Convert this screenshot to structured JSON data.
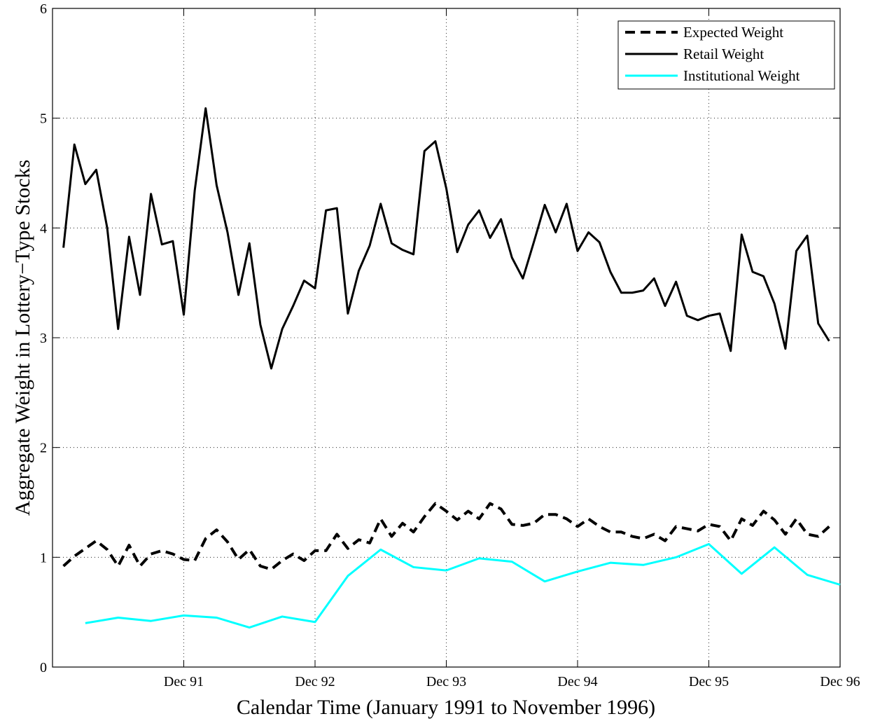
{
  "chart_data": {
    "type": "line",
    "x_label": "Calendar Time (January 1991 to November 1996)",
    "y_label": "Aggregate Weight in Lottery−Type Stocks",
    "xlim": [
      0,
      72
    ],
    "xticks": [
      {
        "value": 12,
        "label": "Dec 91"
      },
      {
        "value": 24,
        "label": "Dec 92"
      },
      {
        "value": 36,
        "label": "Dec 93"
      },
      {
        "value": 48,
        "label": "Dec 94"
      },
      {
        "value": 60,
        "label": "Dec 95"
      },
      {
        "value": 72,
        "label": "Dec 96"
      }
    ],
    "ylim": [
      0,
      6
    ],
    "yticks": [
      0,
      1,
      2,
      3,
      4,
      5,
      6
    ],
    "grid": true,
    "legend": "upper right",
    "series": [
      {
        "name": "Expected Weight",
        "color": "#000000",
        "linestyle": "dashed",
        "x": [
          1,
          2,
          3,
          4,
          5,
          6,
          7,
          8,
          9,
          10,
          11,
          12,
          13,
          14,
          15,
          16,
          17,
          18,
          19,
          20,
          21,
          22,
          23,
          24,
          25,
          26,
          27,
          28,
          29,
          30,
          31,
          32,
          33,
          34,
          35,
          36,
          37,
          38,
          39,
          40,
          41,
          42,
          43,
          44,
          45,
          46,
          47,
          48,
          49,
          50,
          51,
          52,
          53,
          54,
          55,
          56,
          57,
          58,
          59,
          60,
          61,
          62,
          63,
          64,
          65,
          66,
          67,
          68,
          69,
          70,
          71
        ],
        "values": [
          0.92,
          1.01,
          1.08,
          1.15,
          1.07,
          0.92,
          1.11,
          0.92,
          1.03,
          1.06,
          1.03,
          0.98,
          0.97,
          1.17,
          1.25,
          1.14,
          0.98,
          1.07,
          0.92,
          0.89,
          0.97,
          1.03,
          0.97,
          1.06,
          1.06,
          1.21,
          1.08,
          1.16,
          1.13,
          1.35,
          1.19,
          1.31,
          1.23,
          1.37,
          1.49,
          1.42,
          1.34,
          1.42,
          1.35,
          1.49,
          1.44,
          1.3,
          1.29,
          1.31,
          1.39,
          1.39,
          1.35,
          1.28,
          1.35,
          1.28,
          1.23,
          1.23,
          1.19,
          1.17,
          1.21,
          1.15,
          1.28,
          1.26,
          1.24,
          1.3,
          1.28,
          1.15,
          1.35,
          1.29,
          1.42,
          1.34,
          1.21,
          1.35,
          1.21,
          1.19,
          1.28
        ]
      },
      {
        "name": "Retail Weight",
        "color": "#000000",
        "linestyle": "solid",
        "x": [
          1,
          2,
          3,
          4,
          5,
          6,
          7,
          8,
          9,
          10,
          11,
          12,
          13,
          14,
          15,
          16,
          17,
          18,
          19,
          20,
          21,
          22,
          23,
          24,
          25,
          26,
          27,
          28,
          29,
          30,
          31,
          32,
          33,
          34,
          35,
          36,
          37,
          38,
          39,
          40,
          41,
          42,
          43,
          44,
          45,
          46,
          47,
          48,
          49,
          50,
          51,
          52,
          53,
          54,
          55,
          56,
          57,
          58,
          59,
          60,
          61,
          62,
          63,
          64,
          65,
          66,
          67,
          68,
          69,
          70,
          71
        ],
        "values": [
          3.82,
          4.76,
          4.4,
          4.53,
          4.0,
          3.08,
          3.92,
          3.39,
          4.31,
          3.85,
          3.88,
          3.21,
          4.34,
          5.09,
          4.39,
          3.96,
          3.39,
          3.86,
          3.12,
          2.72,
          3.08,
          3.29,
          3.52,
          3.45,
          4.16,
          4.18,
          3.22,
          3.61,
          3.84,
          4.22,
          3.86,
          3.8,
          3.76,
          4.7,
          4.79,
          4.36,
          3.78,
          4.03,
          4.16,
          3.91,
          4.08,
          3.73,
          3.54,
          3.87,
          4.21,
          3.96,
          4.22,
          3.79,
          3.96,
          3.87,
          3.6,
          3.41,
          3.41,
          3.43,
          3.54,
          3.29,
          3.51,
          3.2,
          3.16,
          3.2,
          3.22,
          2.88,
          3.94,
          3.6,
          3.56,
          3.31,
          2.9,
          3.79,
          3.93,
          3.13,
          2.97
        ]
      },
      {
        "name": "Institutional Weight",
        "color": "#00ffff",
        "linestyle": "solid",
        "x": [
          3,
          6,
          9,
          12,
          15,
          18,
          21,
          24,
          27,
          30,
          33,
          36,
          39,
          42,
          45,
          48,
          51,
          54,
          57,
          60,
          63,
          66,
          69,
          72
        ],
        "values": [
          0.4,
          0.45,
          0.42,
          0.47,
          0.45,
          0.36,
          0.46,
          0.41,
          0.83,
          1.07,
          0.91,
          0.88,
          0.99,
          0.96,
          0.78,
          0.87,
          0.95,
          0.93,
          1.0,
          1.12,
          0.85,
          1.09,
          0.84,
          0.75
        ]
      }
    ]
  }
}
